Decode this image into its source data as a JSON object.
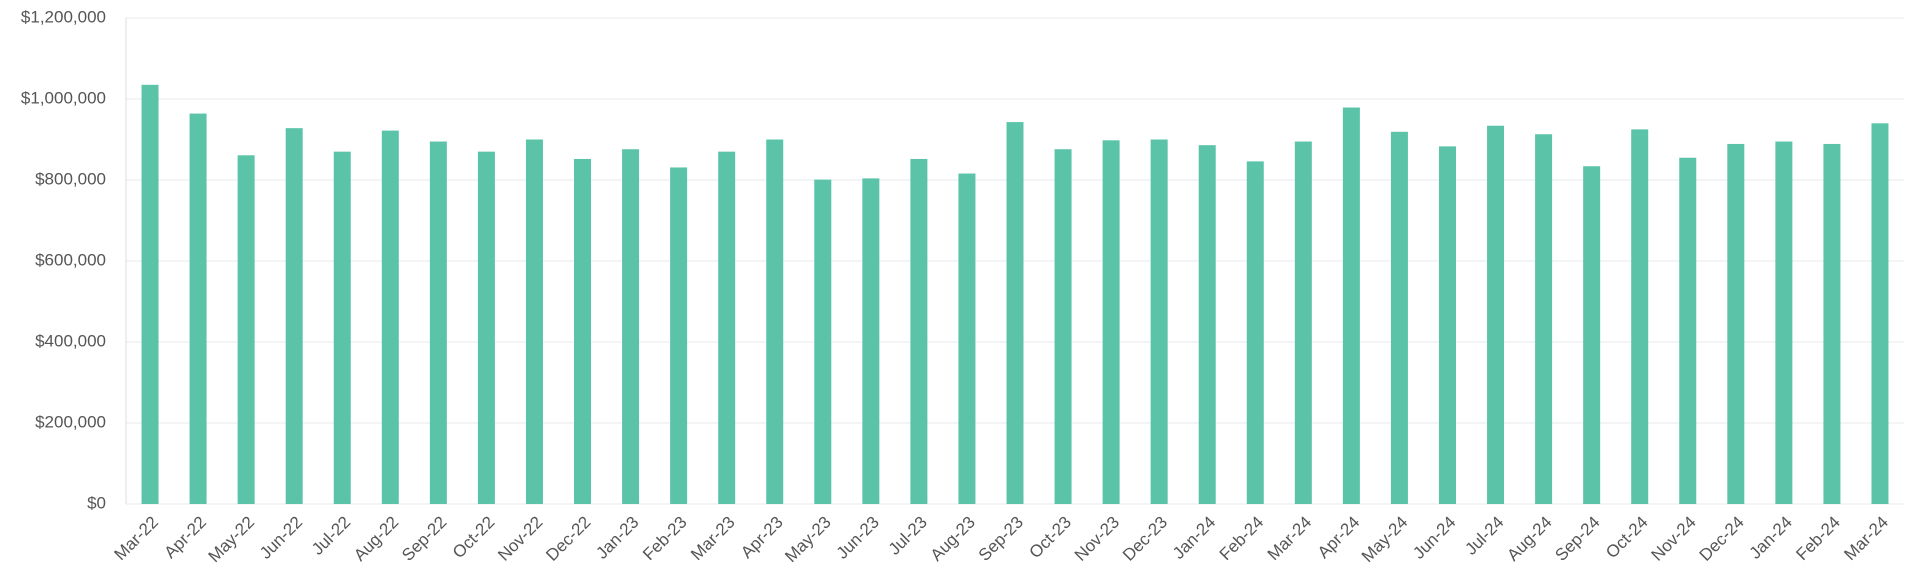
{
  "chart_data": {
    "type": "bar",
    "categories": [
      "Mar-22",
      "Apr-22",
      "May-22",
      "Jun-22",
      "Jul-22",
      "Aug-22",
      "Sep-22",
      "Oct-22",
      "Nov-22",
      "Dec-22",
      "Jan-23",
      "Feb-23",
      "Mar-23",
      "Apr-23",
      "May-23",
      "Jun-23",
      "Jul-23",
      "Aug-23",
      "Sep-23",
      "Oct-23",
      "Nov-23",
      "Dec-23",
      "Jan-24",
      "Feb-24",
      "Mar-24",
      "Apr-24",
      "May-24",
      "Jun-24",
      "Jul-24",
      "Aug-24",
      "Sep-24",
      "Oct-24",
      "Nov-24",
      "Dec-24",
      "Jan-24",
      "Feb-24",
      "Mar-24"
    ],
    "values": [
      1035000,
      964000,
      861000,
      928000,
      870000,
      922000,
      895000,
      870000,
      900000,
      852000,
      876000,
      831000,
      870000,
      900000,
      801000,
      804000,
      852000,
      816000,
      943000,
      876000,
      898000,
      900000,
      886000,
      846000,
      895000,
      979000,
      919000,
      883000,
      934000,
      913000,
      834000,
      925000,
      855000,
      889000,
      895000,
      889000,
      940000
    ],
    "color": "#5bc4a8",
    "ylim": [
      0,
      1200000
    ],
    "yticks": [
      {
        "value": 0,
        "label": "$0"
      },
      {
        "value": 200000,
        "label": "$200,000"
      },
      {
        "value": 400000,
        "label": "$400,000"
      },
      {
        "value": 600000,
        "label": "$600,000"
      },
      {
        "value": 800000,
        "label": "$800,000"
      },
      {
        "value": 1000000,
        "label": "$1,000,000"
      },
      {
        "value": 1200000,
        "label": "$1,200,000"
      }
    ],
    "grid": true
  }
}
